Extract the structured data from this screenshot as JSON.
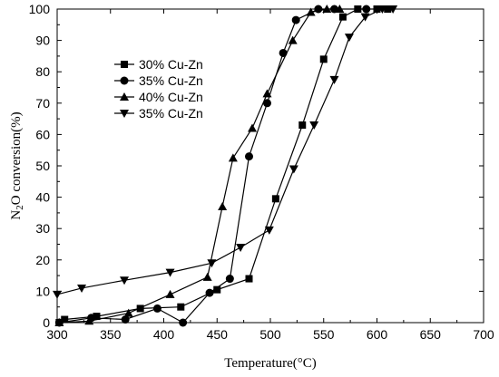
{
  "chart_data": {
    "type": "line",
    "xlabel": "Temperature(°C)",
    "ylabel_parts": [
      "N",
      "2",
      "O conversion(%)"
    ],
    "xlim": [
      300,
      700
    ],
    "ylim": [
      0,
      100
    ],
    "x_ticks": [
      300,
      350,
      400,
      450,
      500,
      550,
      600,
      650,
      700
    ],
    "y_ticks": [
      0,
      10,
      20,
      30,
      40,
      50,
      60,
      70,
      80,
      90,
      100
    ],
    "grid": false,
    "legend_position": "upper-left",
    "series": [
      {
        "name": "30% Cu-Zn",
        "marker": "square",
        "points": [
          [
            302,
            0
          ],
          [
            307,
            1
          ],
          [
            337,
            2
          ],
          [
            378,
            4.5
          ],
          [
            416,
            5
          ],
          [
            450,
            10.5
          ],
          [
            480,
            14
          ],
          [
            505,
            39.5
          ],
          [
            530,
            63
          ],
          [
            550,
            84
          ],
          [
            568,
            97.5
          ],
          [
            582,
            100
          ],
          [
            600,
            100
          ],
          [
            610,
            100
          ]
        ]
      },
      {
        "name": "35% Cu-Zn",
        "marker": "circle",
        "points": [
          [
            302,
            0
          ],
          [
            332,
            1.5
          ],
          [
            364,
            1
          ],
          [
            394,
            4.5
          ],
          [
            418,
            0
          ],
          [
            443,
            9.5
          ],
          [
            462,
            14
          ],
          [
            480,
            53
          ],
          [
            497,
            70
          ],
          [
            512,
            86
          ],
          [
            524,
            96.5
          ],
          [
            545,
            100
          ],
          [
            560,
            100
          ],
          [
            590,
            100
          ]
        ]
      },
      {
        "name": "40% Cu-Zn",
        "marker": "triangle-up",
        "points": [
          [
            302,
            0
          ],
          [
            330,
            0.5
          ],
          [
            367,
            3
          ],
          [
            406,
            9
          ],
          [
            441,
            14.5
          ],
          [
            455,
            37
          ],
          [
            465,
            52.5
          ],
          [
            483,
            62
          ],
          [
            497,
            73
          ],
          [
            521,
            90
          ],
          [
            538,
            99
          ],
          [
            553,
            100
          ],
          [
            565,
            100
          ]
        ]
      },
      {
        "name": "35% Cu-Zn",
        "marker": "triangle-down",
        "points": [
          [
            300,
            9
          ],
          [
            323,
            11
          ],
          [
            363,
            13.5
          ],
          [
            406,
            16
          ],
          [
            445,
            19
          ],
          [
            472,
            24
          ],
          [
            499,
            29.5
          ],
          [
            522,
            49
          ],
          [
            541,
            63
          ],
          [
            560,
            77.5
          ],
          [
            574,
            91
          ],
          [
            589,
            97.5
          ],
          [
            605,
            100
          ],
          [
            615,
            100
          ]
        ]
      }
    ]
  }
}
